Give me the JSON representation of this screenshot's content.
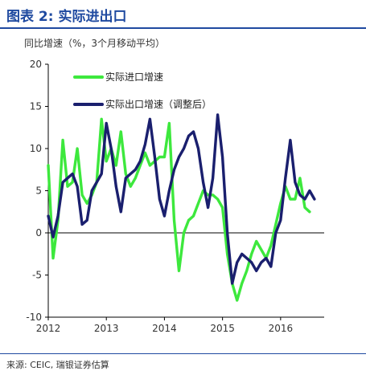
{
  "figure": {
    "title": "图表 2: 实际进出口",
    "source": "来源: CEIC, 瑞银证券估算",
    "accent": "#1f4aa0"
  },
  "chart_data": {
    "type": "line",
    "ylabel": "同比增速（%，3个月移动平均）",
    "xlabel": "",
    "ylim": [
      -10,
      20
    ],
    "yticks": [
      -10,
      -5,
      0,
      5,
      10,
      15,
      20
    ],
    "xlim": [
      2012.0,
      2016.75
    ],
    "xticks": [
      {
        "x": 2012,
        "label": "2012"
      },
      {
        "x": 2013,
        "label": "2013"
      },
      {
        "x": 2014,
        "label": "2014"
      },
      {
        "x": 2015,
        "label": "2015"
      },
      {
        "x": 2016,
        "label": "2016"
      }
    ],
    "grid": false,
    "legend_position": "top-left",
    "series": [
      {
        "name": "实际进口增速",
        "color": "#3de83d",
        "x": [
          2012.0,
          2012.083,
          2012.167,
          2012.25,
          2012.333,
          2012.417,
          2012.5,
          2012.583,
          2012.667,
          2012.75,
          2012.833,
          2012.917,
          2013.0,
          2013.083,
          2013.167,
          2013.25,
          2013.333,
          2013.417,
          2013.5,
          2013.583,
          2013.667,
          2013.75,
          2013.833,
          2013.917,
          2014.0,
          2014.083,
          2014.167,
          2014.25,
          2014.333,
          2014.417,
          2014.5,
          2014.583,
          2014.667,
          2014.75,
          2014.833,
          2014.917,
          2015.0,
          2015.083,
          2015.167,
          2015.25,
          2015.333,
          2015.417,
          2015.5,
          2015.583,
          2015.667,
          2015.75,
          2015.833,
          2015.917,
          2016.0,
          2016.083,
          2016.167,
          2016.25,
          2016.333,
          2016.417,
          2016.5
        ],
        "values": [
          8.0,
          -3.0,
          1.5,
          11.0,
          5.5,
          6.0,
          10.0,
          4.5,
          3.5,
          4.5,
          6.0,
          13.5,
          8.5,
          10.0,
          8.0,
          12.0,
          7.0,
          5.5,
          6.5,
          8.0,
          9.5,
          8.0,
          8.5,
          9.0,
          9.0,
          13.0,
          1.5,
          -4.5,
          0.0,
          1.5,
          2.0,
          3.5,
          5.0,
          4.5,
          4.5,
          4.0,
          3.0,
          -2.5,
          -6.0,
          -8.0,
          -6.0,
          -4.5,
          -2.5,
          -1.0,
          -2.0,
          -3.0,
          -1.5,
          1.0,
          3.5,
          5.5,
          4.0,
          4.0,
          6.5,
          3.0,
          2.5
        ]
      },
      {
        "name": "实际出口增速（调整后）",
        "color": "#1a1f6e",
        "x": [
          2012.0,
          2012.083,
          2012.167,
          2012.25,
          2012.333,
          2012.417,
          2012.5,
          2012.583,
          2012.667,
          2012.75,
          2012.833,
          2012.917,
          2013.0,
          2013.083,
          2013.167,
          2013.25,
          2013.333,
          2013.417,
          2013.5,
          2013.583,
          2013.667,
          2013.75,
          2013.833,
          2013.917,
          2014.0,
          2014.083,
          2014.167,
          2014.25,
          2014.333,
          2014.417,
          2014.5,
          2014.583,
          2014.667,
          2014.75,
          2014.833,
          2014.917,
          2015.0,
          2015.083,
          2015.167,
          2015.25,
          2015.333,
          2015.417,
          2015.5,
          2015.583,
          2015.667,
          2015.75,
          2015.833,
          2015.917,
          2016.0,
          2016.083,
          2016.167,
          2016.25,
          2016.333,
          2016.417,
          2016.5,
          2016.583
        ],
        "values": [
          2.0,
          -0.5,
          2.0,
          6.0,
          6.5,
          7.0,
          5.5,
          1.0,
          1.5,
          5.0,
          6.0,
          7.0,
          13.0,
          10.0,
          5.5,
          2.5,
          6.5,
          7.0,
          7.5,
          8.5,
          10.5,
          13.5,
          9.0,
          4.0,
          2.0,
          5.0,
          7.5,
          9.0,
          10.0,
          11.5,
          12.0,
          10.0,
          6.0,
          3.0,
          6.5,
          14.0,
          9.0,
          0.0,
          -6.0,
          -3.5,
          -2.5,
          -3.0,
          -3.5,
          -4.5,
          -3.5,
          -3.0,
          -4.0,
          0.0,
          1.5,
          6.5,
          11.0,
          6.0,
          4.5,
          4.0,
          5.0,
          4.0
        ]
      }
    ]
  }
}
